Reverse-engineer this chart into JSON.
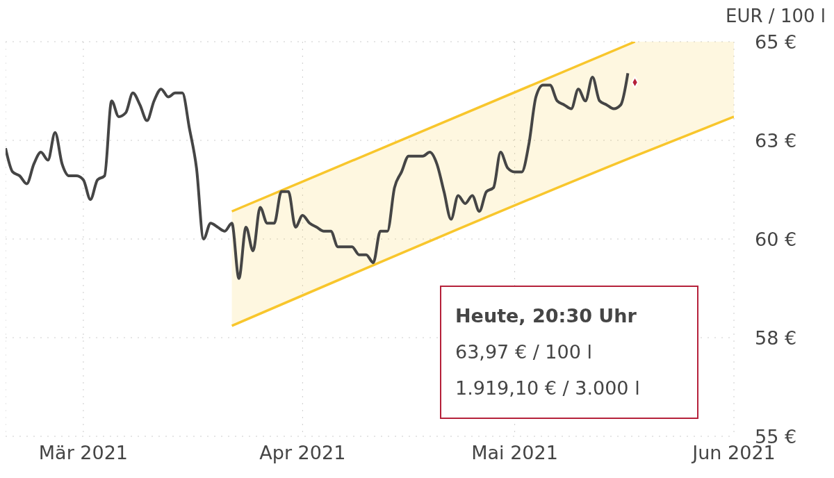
{
  "chart_data": {
    "type": "line",
    "ylabel": "EUR / 100 l",
    "xlim": [
      "2021-02-18",
      "2021-06-01"
    ],
    "xticks": [
      {
        "value": "2021-03-01",
        "label": "Mär 2021"
      },
      {
        "value": "2021-04-01",
        "label": "Apr 2021"
      },
      {
        "value": "2021-05-01",
        "label": "Mai 2021"
      },
      {
        "value": "2021-06-01",
        "label": "Jun 2021"
      }
    ],
    "ylim": [
      55,
      65
    ],
    "yticks": [
      {
        "value": 55,
        "label": "55 €"
      },
      {
        "value": 57.5,
        "label": "58 €"
      },
      {
        "value": 60,
        "label": "60 €"
      },
      {
        "value": 62.5,
        "label": "63 €"
      },
      {
        "value": 65,
        "label": "65 €"
      }
    ],
    "grid": true,
    "marker": "none",
    "line_style": "solid",
    "annotations": [
      "Heute, 20:30 Uhr",
      "63,97 € / 100 l",
      "1.919,10 € / 3.000 l"
    ],
    "series": [
      {
        "color": "#f8c62c",
        "x": [
          "2021-03-22",
          "2021-05-18",
          "2021-06-01"
        ],
        "values": [
          57.8,
          62.1,
          63.1
        ],
        "lower": [
          57.8,
          62.1,
          63.1
        ],
        "upper": [
          60.7,
          65.0,
          65.0
        ]
      },
      {
        "color": "#f8c62c",
        "x": [
          "2021-03-22",
          "2021-05-18"
        ],
        "values": [
          60.7,
          65.0
        ]
      },
      {
        "color": "#454545",
        "x": [
          "2021-02-18",
          "2021-02-19",
          "2021-02-20",
          "2021-02-21",
          "2021-02-22",
          "2021-02-23",
          "2021-02-24",
          "2021-02-25",
          "2021-02-26",
          "2021-02-27",
          "2021-02-28",
          "2021-03-01",
          "2021-03-02",
          "2021-03-03",
          "2021-03-04",
          "2021-03-05",
          "2021-03-06",
          "2021-03-07",
          "2021-03-08",
          "2021-03-09",
          "2021-03-10",
          "2021-03-11",
          "2021-03-12",
          "2021-03-13",
          "2021-03-14",
          "2021-03-15",
          "2021-03-16",
          "2021-03-17",
          "2021-03-18",
          "2021-03-19",
          "2021-03-20",
          "2021-03-21",
          "2021-03-22",
          "2021-03-23",
          "2021-03-24",
          "2021-03-25",
          "2021-03-26",
          "2021-03-27",
          "2021-03-28",
          "2021-03-29",
          "2021-03-30",
          "2021-03-31",
          "2021-04-01",
          "2021-04-02",
          "2021-04-03",
          "2021-04-04",
          "2021-04-05",
          "2021-04-06",
          "2021-04-07",
          "2021-04-08",
          "2021-04-09",
          "2021-04-10",
          "2021-04-11",
          "2021-04-12",
          "2021-04-13",
          "2021-04-14",
          "2021-04-15",
          "2021-04-16",
          "2021-04-17",
          "2021-04-18",
          "2021-04-19",
          "2021-04-20",
          "2021-04-21",
          "2021-04-22",
          "2021-04-23",
          "2021-04-24",
          "2021-04-25",
          "2021-04-26",
          "2021-04-27",
          "2021-04-28",
          "2021-04-29",
          "2021-04-30",
          "2021-05-01",
          "2021-05-02",
          "2021-05-03",
          "2021-05-04",
          "2021-05-05",
          "2021-05-06",
          "2021-05-07",
          "2021-05-08",
          "2021-05-09",
          "2021-05-10",
          "2021-05-11",
          "2021-05-12",
          "2021-05-13",
          "2021-05-14",
          "2021-05-15",
          "2021-05-16",
          "2021-05-17"
        ],
        "values": [
          62.3,
          61.7,
          61.6,
          61.4,
          61.9,
          62.2,
          62.0,
          62.7,
          61.9,
          61.6,
          61.6,
          61.5,
          61.0,
          61.5,
          61.6,
          63.5,
          63.1,
          63.2,
          63.7,
          63.4,
          63.0,
          63.5,
          63.8,
          63.6,
          63.7,
          63.7,
          62.8,
          61.8,
          60.0,
          60.4,
          60.3,
          60.2,
          60.4,
          59.0,
          60.3,
          59.7,
          60.8,
          60.4,
          60.4,
          61.2,
          61.2,
          60.3,
          60.6,
          60.4,
          60.3,
          60.2,
          60.2,
          59.8,
          59.8,
          59.8,
          59.6,
          59.6,
          59.4,
          60.2,
          60.2,
          61.3,
          61.7,
          62.1,
          62.1,
          62.1,
          62.2,
          61.9,
          61.2,
          60.5,
          61.1,
          60.9,
          61.1,
          60.7,
          61.2,
          61.3,
          62.2,
          61.8,
          61.7,
          61.7,
          62.4,
          63.6,
          63.9,
          63.9,
          63.5,
          63.4,
          63.3,
          63.8,
          63.5,
          64.1,
          63.5,
          63.4,
          63.3,
          63.4,
          64.2
        ]
      },
      {
        "type": "scatter",
        "color": "#b5213a",
        "marker": "diamond",
        "x": [
          "2021-05-18"
        ],
        "values": [
          63.97
        ]
      }
    ]
  }
}
